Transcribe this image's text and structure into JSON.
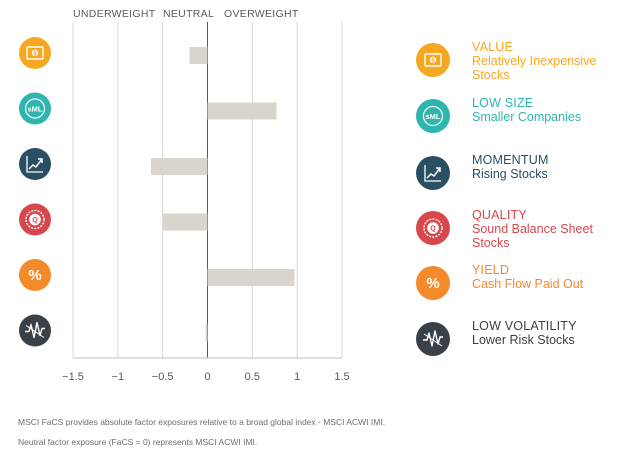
{
  "header": {
    "underweight": "UNDERWEIGHT",
    "neutral": "NEUTRAL",
    "overweight": "OVERWEIGHT"
  },
  "chart_data": {
    "type": "bar",
    "orientation": "horizontal",
    "categories": [
      "VALUE",
      "LOW SIZE",
      "MOMENTUM",
      "QUALITY",
      "YIELD",
      "LOW VOLATILITY"
    ],
    "values": [
      -0.2,
      0.77,
      -0.63,
      -0.5,
      0.97,
      -0.02
    ],
    "xlim": [
      -1.5,
      1.5
    ],
    "xticks": [
      -1.5,
      -1,
      -0.5,
      0,
      0.5,
      1,
      1.5
    ],
    "xtick_labels": [
      "−1.5",
      "−1",
      "−0.5",
      "0",
      "0.5",
      "1",
      "1.5"
    ],
    "grid": true,
    "bar_color": "#d9d4cc"
  },
  "legend": [
    {
      "name": "VALUE",
      "description": "Relatively Inexpensive Stocks",
      "color": "#f7a823",
      "text_color": "#f7a823",
      "icon": "dollar-bill-icon"
    },
    {
      "name": "LOW SIZE",
      "description": "Smaller Companies",
      "color": "#2eb6ae",
      "text_color": "#2eb6ae",
      "icon": "sml-icon"
    },
    {
      "name": "MOMENTUM",
      "description": "Rising Stocks",
      "color": "#2a4e62",
      "text_color": "#2a4e62",
      "icon": "rising-chart-icon"
    },
    {
      "name": "QUALITY",
      "description": "Sound Balance Sheet Stocks",
      "color": "#d6484b",
      "text_color": "#d6484b",
      "icon": "quality-seal-icon"
    },
    {
      "name": "YIELD",
      "description": "Cash Flow Paid Out",
      "color": "#f58a2b",
      "text_color": "#f58a2b",
      "icon": "percent-icon"
    },
    {
      "name": "LOW VOLATILITY",
      "description": "Lower Risk Stocks",
      "color": "#3a4047",
      "text_color": "#3a4047",
      "icon": "volatility-icon"
    }
  ],
  "footnotes": [
    "MSCI FaCS provides absolute factor exposures relative to a broad global index - MSCI ACWI IMI.",
    "Neutral factor exposure (FaCS = 0) represents MSCI ACWI IMI."
  ]
}
